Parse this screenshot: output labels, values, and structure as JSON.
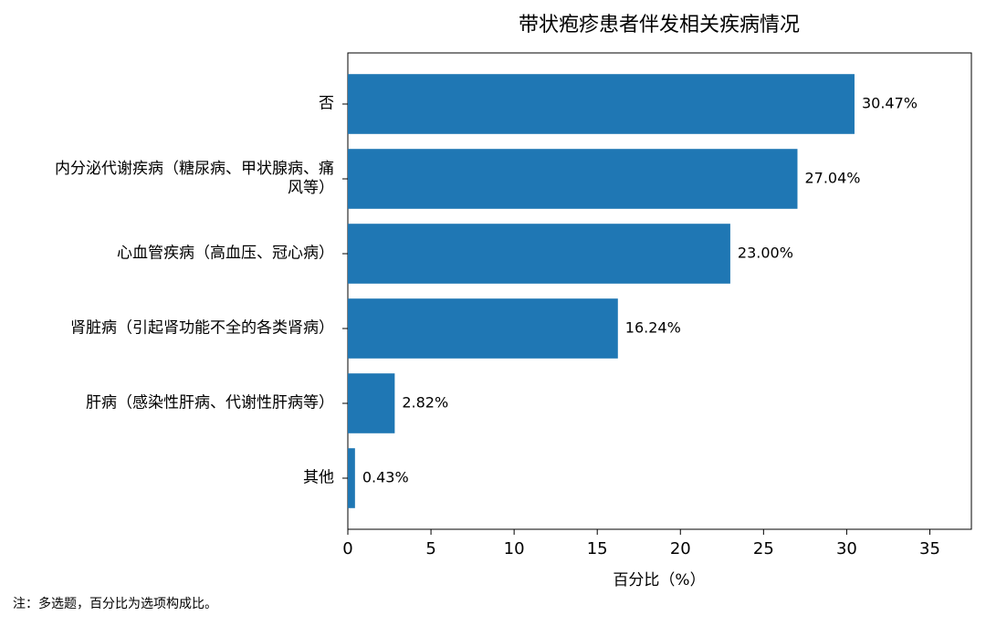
{
  "chart_data": {
    "type": "barh",
    "title": "带状疱疹患者伴发相关疾病情况",
    "categories": [
      "否",
      "内分泌代谢疾病（糖尿病、甲状腺病、痛风等）",
      "心血管疾病（高血压、冠心病）",
      "肾脏病（引起肾功能不全的各类肾病）",
      "肝病（感染性肝病、代谢性肝病等）",
      "其他"
    ],
    "values": [
      30.47,
      27.04,
      23.0,
      16.24,
      2.82,
      0.43
    ],
    "value_labels": [
      "30.47%",
      "27.04%",
      "23.00%",
      "16.24%",
      "2.82%",
      "0.43%"
    ],
    "color": "#1f77b4",
    "xlim": [
      0,
      37.5
    ],
    "xticks": [
      0,
      5,
      10,
      15,
      20,
      25,
      30,
      35
    ],
    "xlabel": "百分比（%）",
    "note": "注：多选题，百分比为选项构成比。"
  }
}
